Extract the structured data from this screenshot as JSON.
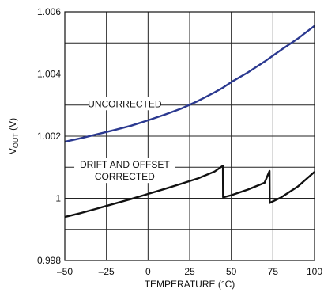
{
  "chart_data": {
    "type": "line",
    "title": "",
    "xlabel": "TEMPERATURE (°C)",
    "ylabel_main": "V",
    "ylabel_sub": "OUT",
    "ylabel_unit": " (V)",
    "xlim": [
      -50,
      100
    ],
    "ylim": [
      0.998,
      1.006
    ],
    "x_ticks": [
      -50,
      -25,
      0,
      25,
      50,
      75,
      100
    ],
    "x_tick_labels": [
      "–50",
      "–25",
      "0",
      "25",
      "50",
      "75",
      "100"
    ],
    "y_ticks": [
      0.998,
      1.0,
      1.002,
      1.004,
      1.006
    ],
    "y_tick_labels": [
      "0.998",
      "1",
      "1.002",
      "1.004",
      "1.006"
    ],
    "grid": true,
    "legend": "none",
    "series": [
      {
        "color": "#2b3990",
        "label_lines": [
          "UNCORRECTED"
        ],
        "label_anchor": [
          -14,
          1.00305
        ],
        "x": [
          -50,
          -40,
          -30,
          -20,
          -10,
          0,
          10,
          20,
          30,
          40,
          45,
          50,
          60,
          70,
          80,
          90,
          100
        ],
        "y": [
          1.00182,
          1.00194,
          1.00207,
          1.0022,
          1.00234,
          1.00251,
          1.00269,
          1.00289,
          1.00313,
          1.00341,
          1.00356,
          1.00374,
          1.00405,
          1.0044,
          1.00478,
          1.00514,
          1.00555
        ]
      },
      {
        "color": "#111111",
        "label_lines": [
          "DRIFT AND OFFSET",
          "CORRECTED"
        ],
        "label_anchor": [
          -14,
          1.0009
        ],
        "x": [
          -50,
          -40,
          -30,
          -20,
          -10,
          0,
          10,
          20,
          30,
          40,
          45,
          45.1,
          50,
          60,
          70,
          73,
          73.1,
          80,
          90,
          100
        ],
        "y": [
          0.9994,
          0.99953,
          0.99968,
          0.99983,
          0.99998,
          1.00014,
          1.0003,
          1.00047,
          1.00064,
          1.00086,
          1.00105,
          1.00003,
          1.0001,
          1.00028,
          1.0005,
          1.00088,
          0.99985,
          1.00003,
          1.00038,
          1.00085
        ]
      }
    ]
  }
}
